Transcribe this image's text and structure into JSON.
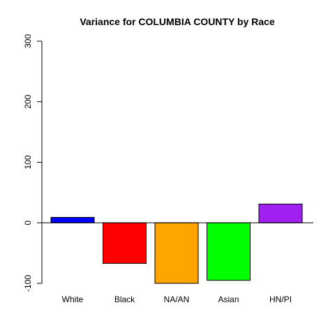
{
  "chart_data": {
    "type": "bar",
    "title": "Variance for COLUMBIA COUNTY by Race",
    "xlabel": "",
    "ylabel": "",
    "categories": [
      "White",
      "Black",
      "NA/AN",
      "Asian",
      "HN/PI"
    ],
    "values": [
      9,
      -67,
      -100,
      -95,
      31
    ],
    "colors": [
      "#0000ff",
      "#ff0000",
      "#ffa500",
      "#00ff00",
      "#a020f0"
    ],
    "ylim": [
      -100,
      300
    ],
    "yticks": [
      -100,
      0,
      100,
      200,
      300
    ],
    "ytick_labels": [
      "-100",
      "0",
      "100",
      "200",
      "300"
    ],
    "zero_line": true,
    "grid": false,
    "legend": "none"
  }
}
